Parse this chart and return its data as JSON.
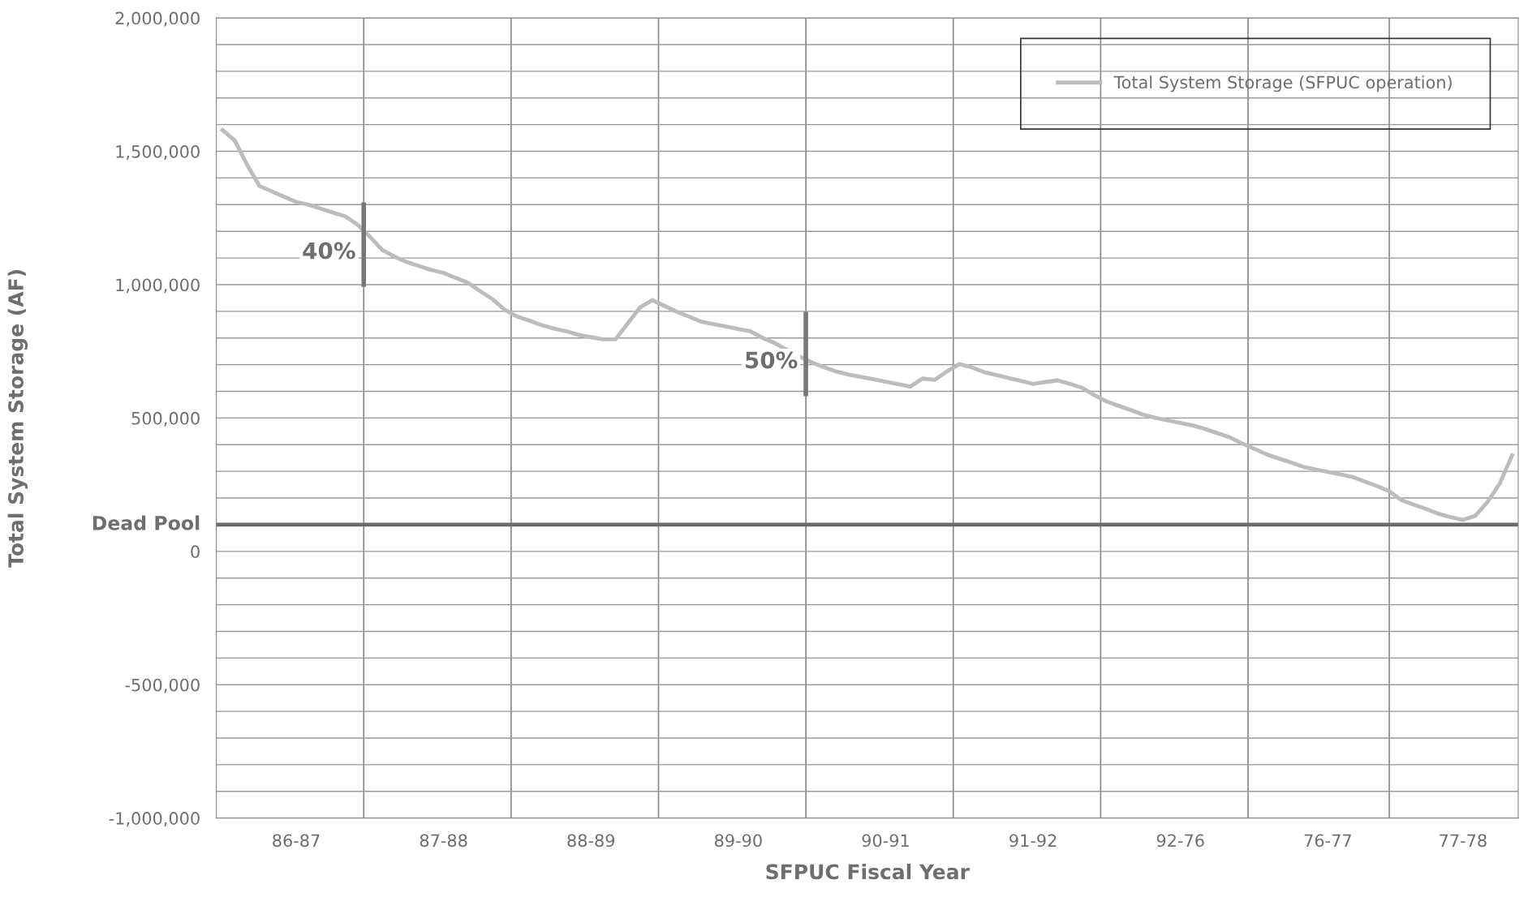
{
  "chart_data": {
    "type": "line",
    "xlabel": "SFPUC Fiscal Year",
    "ylabel": "Total System Storage (AF)",
    "categories": [
      null,
      null,
      null,
      null,
      null,
      null,
      "86-87",
      null,
      null,
      null,
      null,
      null,
      null,
      null,
      null,
      null,
      null,
      null,
      "87-88",
      null,
      null,
      null,
      null,
      null,
      null,
      null,
      null,
      null,
      null,
      null,
      "88-89",
      null,
      null,
      null,
      null,
      null,
      null,
      null,
      null,
      null,
      null,
      null,
      "89-90",
      null,
      null,
      null,
      null,
      null,
      null,
      null,
      null,
      null,
      null,
      null,
      "90-91",
      null,
      null,
      null,
      null,
      null,
      null,
      null,
      null,
      null,
      null,
      null,
      "91-92",
      null,
      null,
      null,
      null,
      null,
      null,
      null,
      null,
      null,
      null,
      null,
      "92-76",
      null,
      null,
      null,
      null,
      null,
      null,
      null,
      null,
      null,
      null,
      null,
      "76-77",
      null,
      null,
      null,
      null,
      null,
      null,
      null,
      null,
      null,
      null,
      "77-78",
      null,
      null,
      null,
      null
    ],
    "ylim": [
      -1000000,
      2000000
    ],
    "yticks": [
      {
        "value": -1000000,
        "label": "-1,000,000"
      },
      {
        "value": -900000,
        "label": null
      },
      {
        "value": -800000,
        "label": null
      },
      {
        "value": -700000,
        "label": null
      },
      {
        "value": -600000,
        "label": null
      },
      {
        "value": -500000,
        "label": "-500,000"
      },
      {
        "value": -400000,
        "label": null
      },
      {
        "value": -300000,
        "label": null
      },
      {
        "value": -200000,
        "label": null
      },
      {
        "value": -100000,
        "label": null
      },
      {
        "value": 0,
        "label": "0"
      },
      {
        "value": 100000,
        "label": null
      },
      {
        "value": 200000,
        "label": null
      },
      {
        "value": 300000,
        "label": null
      },
      {
        "value": 400000,
        "label": null
      },
      {
        "value": 500000,
        "label": "500,000"
      },
      {
        "value": 600000,
        "label": null
      },
      {
        "value": 700000,
        "label": null
      },
      {
        "value": 800000,
        "label": null
      },
      {
        "value": 900000,
        "label": null
      },
      {
        "value": 1000000,
        "label": "1,000,000"
      },
      {
        "value": 1100000,
        "label": null
      },
      {
        "value": 1200000,
        "label": null
      },
      {
        "value": 1300000,
        "label": null
      },
      {
        "value": 1400000,
        "label": null
      },
      {
        "value": 1500000,
        "label": "1,500,000"
      },
      {
        "value": 1600000,
        "label": null
      },
      {
        "value": 1700000,
        "label": null
      },
      {
        "value": 1800000,
        "label": null
      },
      {
        "value": 1900000,
        "label": null
      },
      {
        "value": 2000000,
        "label": "2,000,000"
      }
    ],
    "grid": true,
    "legend": "top right",
    "marker": "none",
    "line_style": "solid",
    "series": [
      {
        "name": "Total System Storage (SFPUC operation)",
        "color": "#bcbcbc",
        "values": [
          1580000,
          1540000,
          1450000,
          1370000,
          1350000,
          1330000,
          1310000,
          1300000,
          1285000,
          1270000,
          1256000,
          1225000,
          1180000,
          1130000,
          1105000,
          1085000,
          1070000,
          1055000,
          1044000,
          1025000,
          1007000,
          975000,
          945000,
          905000,
          880000,
          865000,
          848000,
          835000,
          825000,
          812000,
          803000,
          795000,
          795000,
          855000,
          915000,
          942000,
          920000,
          898000,
          880000,
          861000,
          852000,
          843000,
          834000,
          825000,
          800000,
          780000,
          755000,
          730000,
          708000,
          690000,
          674000,
          663000,
          654000,
          645000,
          636000,
          627000,
          618000,
          648000,
          643000,
          675000,
          702000,
          690000,
          672000,
          661000,
          650000,
          639000,
          628000,
          635000,
          641000,
          628000,
          613000,
          585000,
          562000,
          545000,
          529000,
          512000,
          500000,
          491000,
          481000,
          472000,
          459000,
          443000,
          428000,
          405000,
          385000,
          364000,
          348000,
          333000,
          317000,
          307000,
          298000,
          289000,
          279000,
          262000,
          245000,
          225000,
          192000,
          175000,
          159000,
          141000,
          128000,
          118000,
          133000,
          185000,
          255000,
          360000
        ]
      }
    ],
    "ref_lines": [
      {
        "axis": "y",
        "value": 100000,
        "label": "Dead Pool",
        "color": "#6b6b6b"
      }
    ],
    "annotations": [
      "40%",
      "50%"
    ]
  }
}
